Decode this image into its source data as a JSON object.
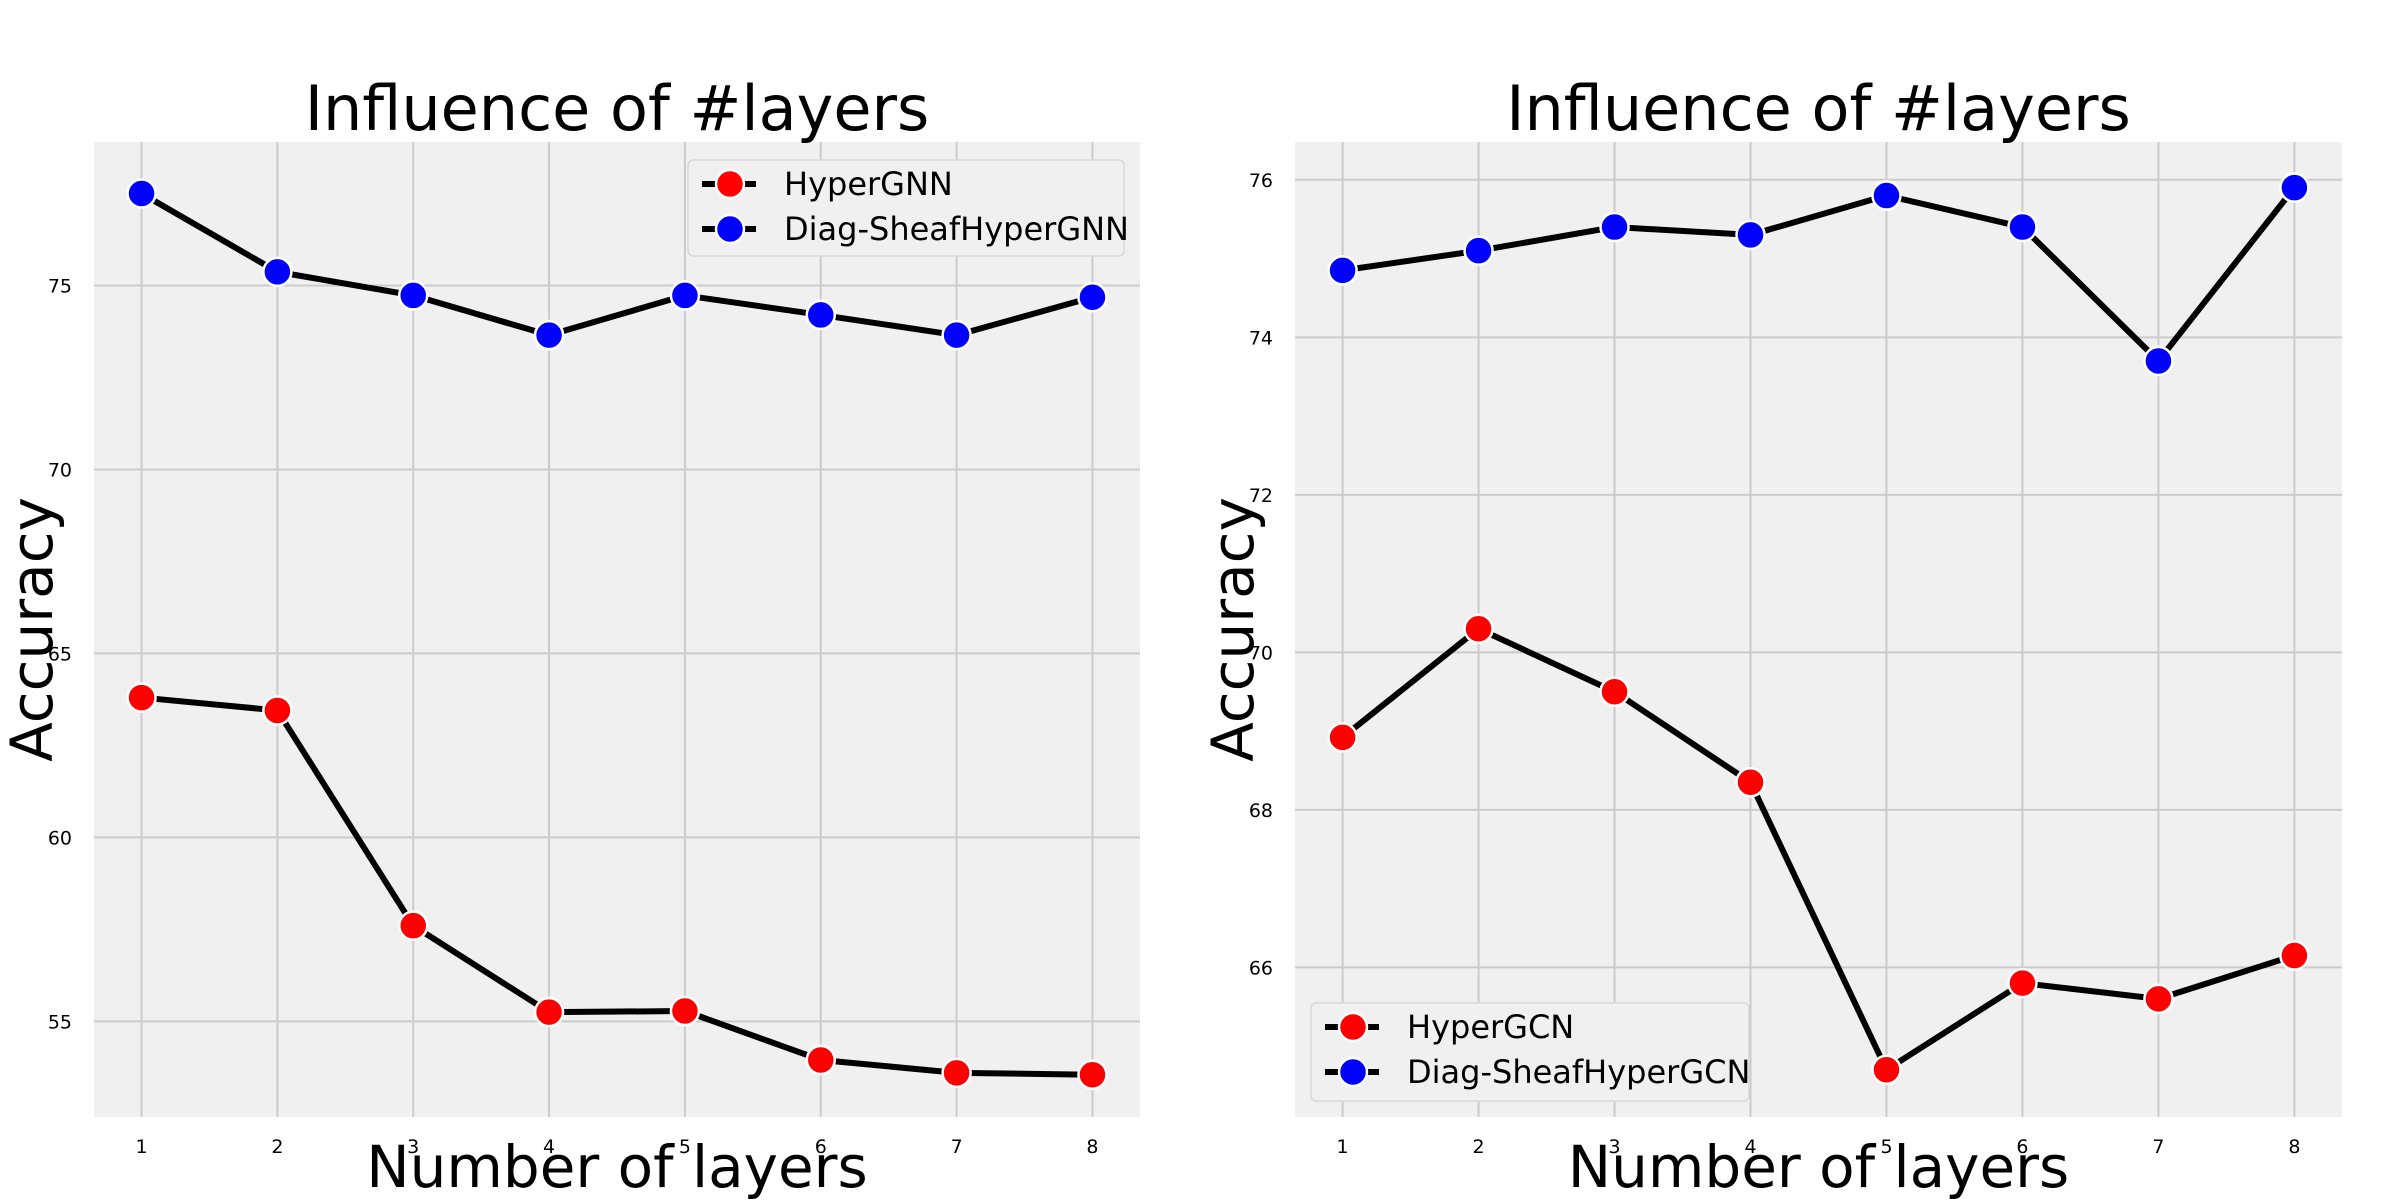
{
  "chart_data": [
    {
      "type": "line",
      "title": "Influence of  #layers",
      "xlabel": "Number of layers",
      "ylabel": "Accuracy",
      "x": [
        1,
        2,
        3,
        4,
        5,
        6,
        7,
        8
      ],
      "xlim": [
        0.65,
        8.35
      ],
      "ylim": [
        52.4,
        78.9
      ],
      "yticks": [
        55,
        60,
        65,
        70,
        75
      ],
      "grid": true,
      "legend_position": "top-right",
      "series": [
        {
          "name": "HyperGNN",
          "color": "#ff0000",
          "values": [
            63.8,
            63.45,
            57.6,
            55.25,
            55.28,
            53.95,
            53.6,
            53.55
          ]
        },
        {
          "name": "Diag-SheafHyperGNN",
          "color": "#0000ff",
          "values": [
            77.5,
            75.37,
            74.73,
            73.65,
            74.73,
            74.2,
            73.65,
            74.68
          ]
        }
      ]
    },
    {
      "type": "line",
      "title": "Influence of  #layers",
      "xlabel": "Number of layers",
      "ylabel": "Accuracy",
      "x": [
        1,
        2,
        3,
        4,
        5,
        6,
        7,
        8
      ],
      "xlim": [
        0.65,
        8.35
      ],
      "ylim": [
        64.1,
        76.48
      ],
      "yticks": [
        66,
        68,
        70,
        72,
        74,
        76
      ],
      "grid": true,
      "legend_position": "bottom-left",
      "series": [
        {
          "name": "HyperGCN",
          "color": "#ff0000",
          "values": [
            68.92,
            70.3,
            69.5,
            68.35,
            64.7,
            65.8,
            65.6,
            66.15
          ]
        },
        {
          "name": "Diag-SheafHyperGCN",
          "color": "#0000ff",
          "values": [
            74.85,
            75.1,
            75.4,
            75.3,
            75.8,
            75.4,
            73.7,
            75.9
          ]
        }
      ]
    }
  ]
}
